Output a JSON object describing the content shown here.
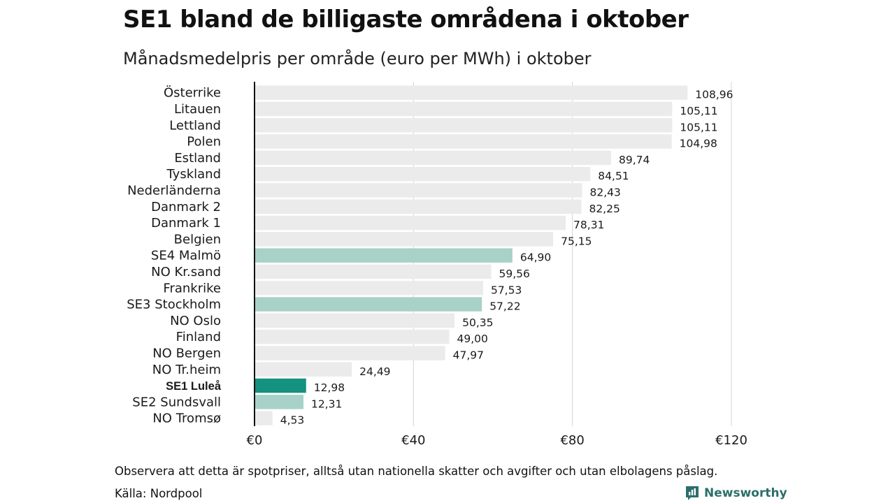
{
  "header": {
    "title": "SE1 bland de billigaste områdena i oktober",
    "subtitle": "Månadsmedelpris per område (euro per MWh) i oktober"
  },
  "footer": {
    "note": "Observera att detta är spotpriser, alltså utan nationella skatter och avgifter och utan elbolagens påslag.",
    "source": "Källa: Nordpool",
    "brand": "Newsworthy"
  },
  "colors": {
    "default_bar": "#ebebeb",
    "swedish_bar": "#a8d1c8",
    "highlight_bar": "#14917f",
    "axis": "#111111",
    "grid": "#d4d4d4",
    "brand": "#2c6f6a"
  },
  "chart_data": {
    "type": "bar",
    "orientation": "horizontal",
    "title": "SE1 bland de billigaste områdena i oktober",
    "subtitle": "Månadsmedelpris per område (euro per MWh) i oktober",
    "xlabel": "",
    "ylabel": "",
    "xlim": [
      0,
      120
    ],
    "xticks": [
      0,
      40,
      80,
      120
    ],
    "xtick_labels": [
      "€0",
      "€40",
      "€80",
      "€120"
    ],
    "grid": true,
    "categories": [
      "Österrike",
      "Litauen",
      "Lettland",
      "Polen",
      "Estland",
      "Tyskland",
      "Nederländerna",
      "Danmark 2",
      "Danmark 1",
      "Belgien",
      "SE4 Malmö",
      "NO Kr.sand",
      "Frankrike",
      "SE3 Stockholm",
      "NO Oslo",
      "Finland",
      "NO Bergen",
      "NO Tr.heim",
      "SE1 Luleå",
      "SE2 Sundsvall",
      "NO Tromsø"
    ],
    "values": [
      108.96,
      105.11,
      105.11,
      104.98,
      89.74,
      84.51,
      82.43,
      82.25,
      78.31,
      75.15,
      64.9,
      59.56,
      57.53,
      57.22,
      50.35,
      49.0,
      47.97,
      24.49,
      12.98,
      12.31,
      4.53
    ],
    "value_labels": [
      "108,96",
      "105,11",
      "105,11",
      "104,98",
      "89,74",
      "84,51",
      "82,43",
      "82,25",
      "78,31",
      "75,15",
      "64,90",
      "59,56",
      "57,53",
      "57,22",
      "50,35",
      "49,00",
      "47,97",
      "24,49",
      "12,98",
      "12,31",
      "4,53"
    ],
    "bar_style": [
      "default",
      "default",
      "default",
      "default",
      "default",
      "default",
      "default",
      "default",
      "default",
      "default",
      "swedish",
      "default",
      "default",
      "swedish",
      "default",
      "default",
      "default",
      "default",
      "highlight",
      "swedish",
      "default"
    ],
    "bold_labels": [
      "SE1 Luleå"
    ]
  }
}
